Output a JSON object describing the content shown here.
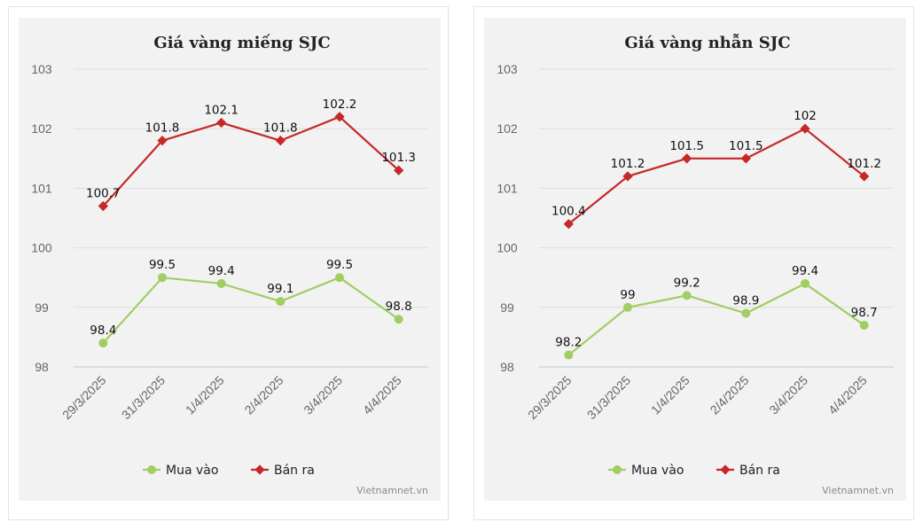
{
  "colors": {
    "buy": "#9fce63",
    "sell": "#c62828"
  },
  "credit": "Vietnamnet.vn",
  "chart_data": [
    {
      "type": "line",
      "title": "Giá vàng miếng SJC",
      "categories": [
        "29/3/2025",
        "31/3/2025",
        "1/4/2025",
        "2/4/2025",
        "3/4/2025",
        "4/4/2025"
      ],
      "ylim": [
        98,
        103
      ],
      "yticks": [
        "98",
        "99",
        "100",
        "101",
        "102",
        "103"
      ],
      "series": [
        {
          "name": "Mua vào",
          "values": [
            98.4,
            99.5,
            99.4,
            99.1,
            99.5,
            98.8
          ],
          "labels": [
            "98.4",
            "99.5",
            "99.4",
            "99.1",
            "99.5",
            "98.8"
          ]
        },
        {
          "name": "Bán ra",
          "values": [
            100.7,
            101.8,
            102.1,
            101.8,
            102.2,
            101.3
          ],
          "labels": [
            "100.7",
            "101.8",
            "102.1",
            "101.8",
            "102.2",
            "101.3"
          ]
        }
      ],
      "legend": "bottom",
      "credit": "Vietnamnet.vn"
    },
    {
      "type": "line",
      "title": "Giá vàng nhẫn SJC",
      "categories": [
        "29/3/2025",
        "31/3/2025",
        "1/4/2025",
        "2/4/2025",
        "3/4/2025",
        "4/4/2025"
      ],
      "ylim": [
        98,
        103
      ],
      "yticks": [
        "98",
        "99",
        "100",
        "101",
        "102",
        "103"
      ],
      "series": [
        {
          "name": "Mua vào",
          "values": [
            98.2,
            99,
            99.2,
            98.9,
            99.4,
            98.7
          ],
          "labels": [
            "98.2",
            "99",
            "99.2",
            "98.9",
            "99.4",
            "98.7"
          ]
        },
        {
          "name": "Bán ra",
          "values": [
            100.4,
            101.2,
            101.5,
            101.5,
            102,
            101.2
          ],
          "labels": [
            "100.4",
            "101.2",
            "101.5",
            "101.5",
            "102",
            "101.2"
          ]
        }
      ],
      "legend": "bottom",
      "credit": "Vietnamnet.vn"
    }
  ]
}
